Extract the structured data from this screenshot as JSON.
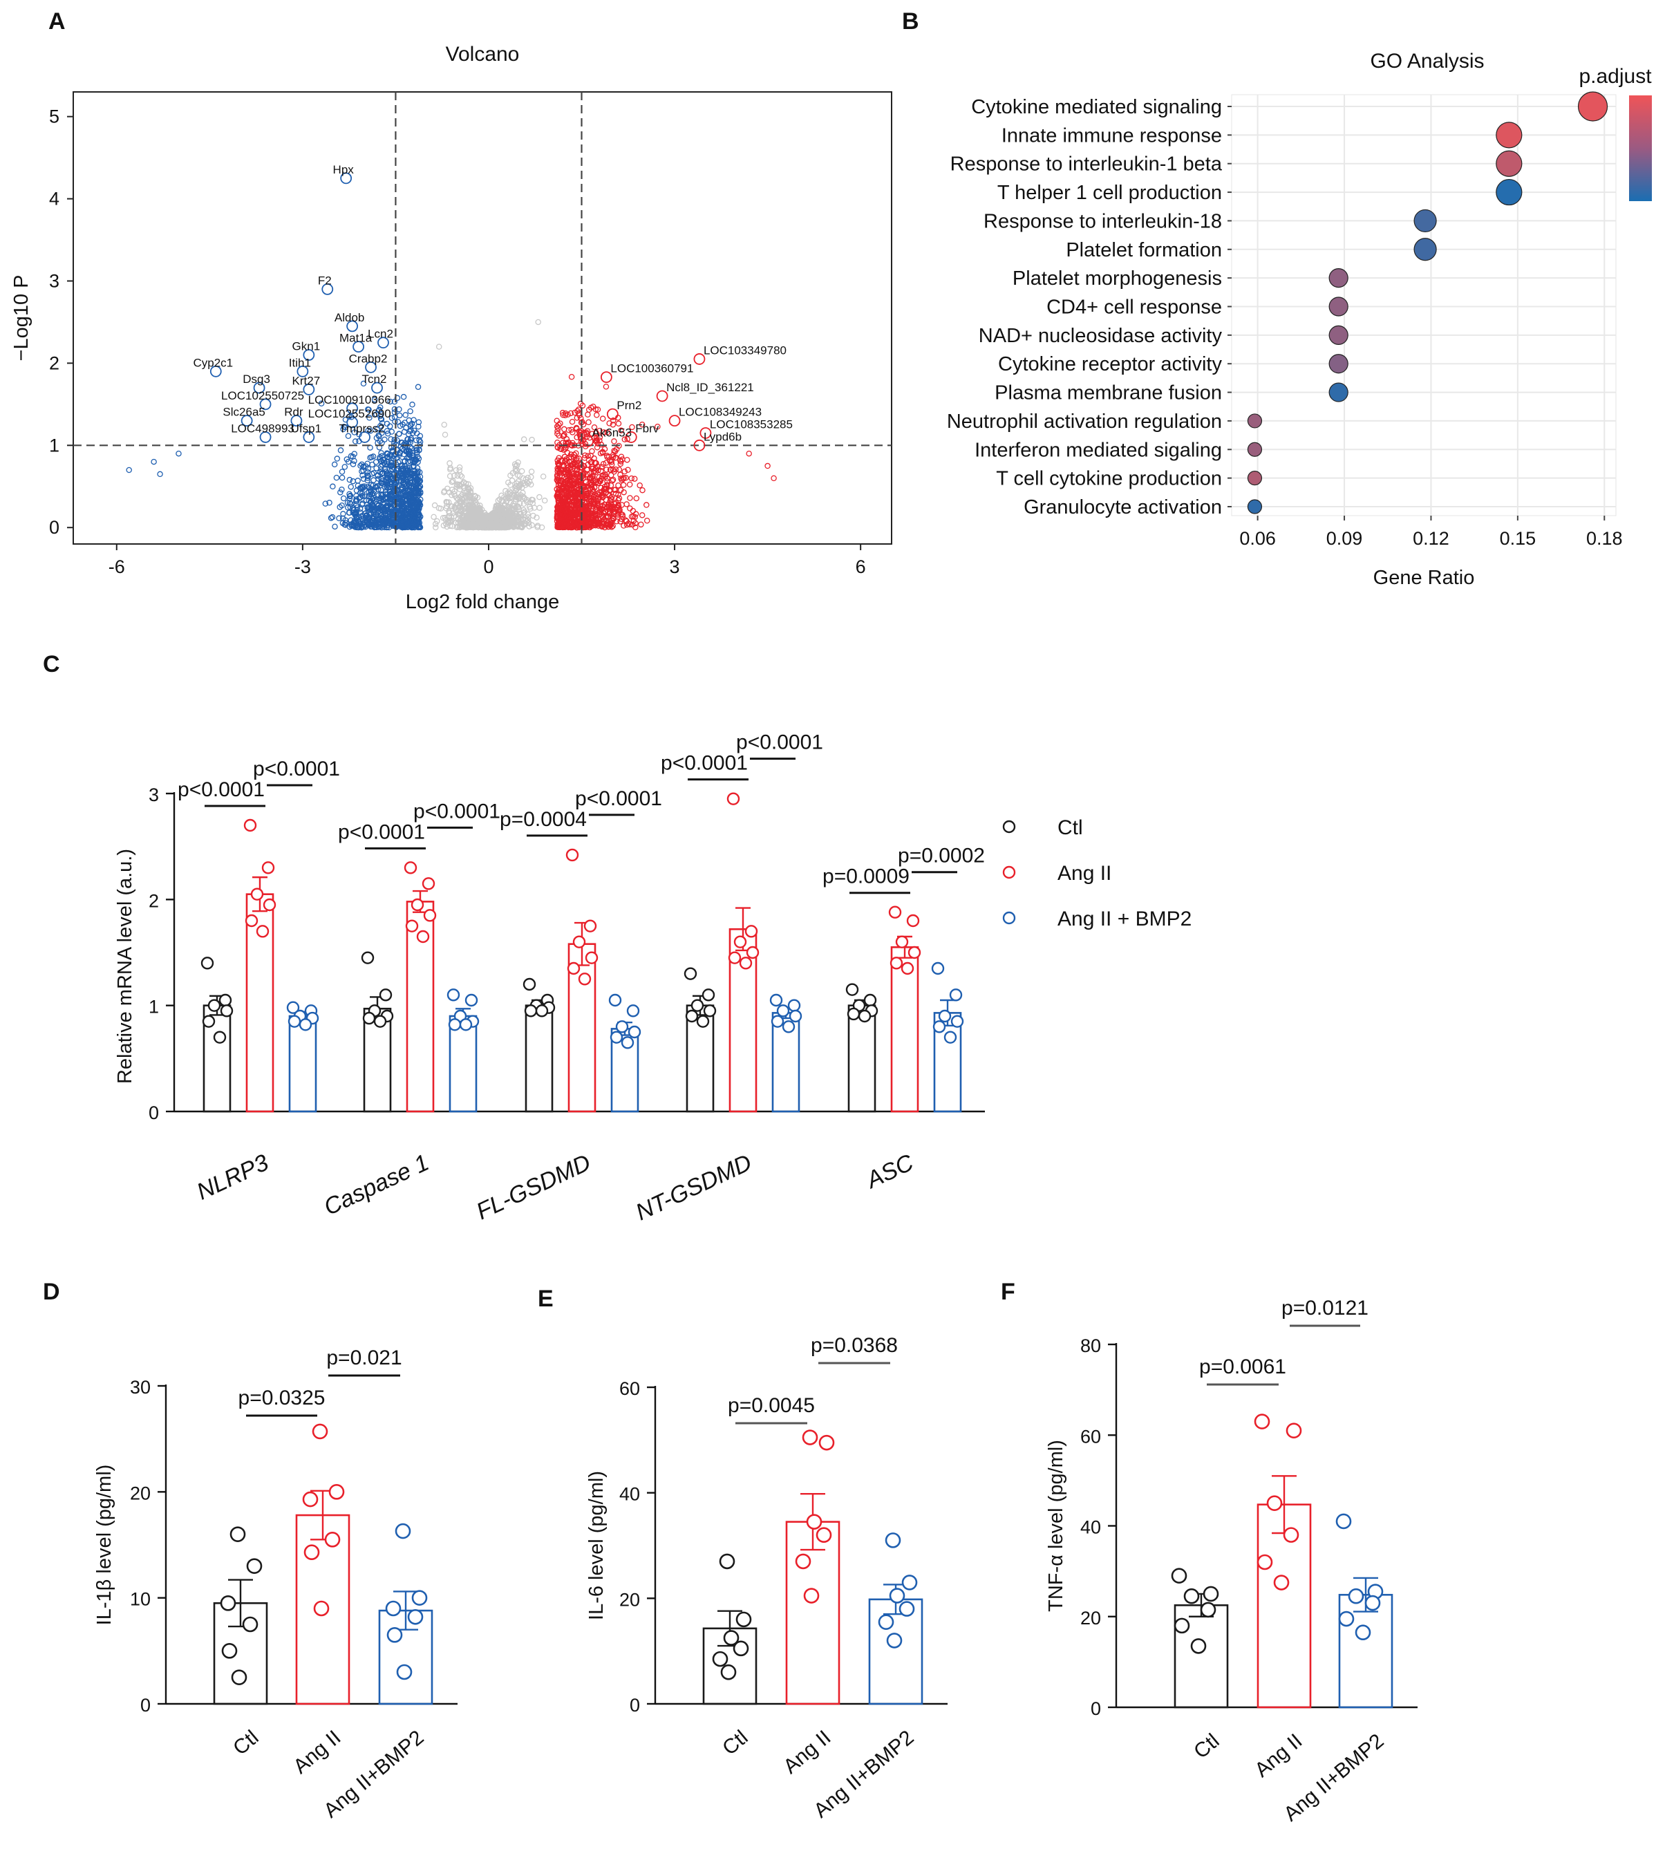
{
  "panel_letters": {
    "A": "A",
    "B": "B",
    "C": "C",
    "D": "D",
    "E": "E",
    "F": "F"
  },
  "colors": {
    "ctl": "#1a1a1a",
    "ang": "#e8202a",
    "bmp": "#1f5fb0",
    "grey": "#c8c8c8"
  },
  "chart_data": [
    {
      "id": "A",
      "type": "scatter",
      "title": "Volcano",
      "xlabel": "Log2 fold change",
      "ylabel": "−Log10 P",
      "xlim": [
        -6.7,
        6.5
      ],
      "ylim": [
        -0.2,
        5.3
      ],
      "xticks": [
        -6,
        -3,
        0,
        3,
        6
      ],
      "yticks": [
        0,
        1,
        2,
        3,
        4,
        5
      ],
      "fc_thresholds": [
        -1.5,
        1.5
      ],
      "p_threshold": 1,
      "labeled_points": [
        {
          "gene": "Hpx",
          "x": -2.3,
          "y": 4.25,
          "dir": "down"
        },
        {
          "gene": "F2",
          "x": -2.6,
          "y": 2.9,
          "dir": "down"
        },
        {
          "gene": "Aldob",
          "x": -2.2,
          "y": 2.45,
          "dir": "down"
        },
        {
          "gene": "Lcn2",
          "x": -1.7,
          "y": 2.25,
          "dir": "down"
        },
        {
          "gene": "Mat1a",
          "x": -2.1,
          "y": 2.2,
          "dir": "down"
        },
        {
          "gene": "Gkn1",
          "x": -2.9,
          "y": 2.1,
          "dir": "down"
        },
        {
          "gene": "Crabp2",
          "x": -1.9,
          "y": 1.95,
          "dir": "down"
        },
        {
          "gene": "Itih1",
          "x": -3.0,
          "y": 1.9,
          "dir": "down"
        },
        {
          "gene": "Cyp2c1",
          "x": -4.4,
          "y": 1.9,
          "dir": "down"
        },
        {
          "gene": "Tcn2",
          "x": -1.8,
          "y": 1.7,
          "dir": "down"
        },
        {
          "gene": "Dsg3",
          "x": -3.7,
          "y": 1.7,
          "dir": "down"
        },
        {
          "gene": "Krt27",
          "x": -2.9,
          "y": 1.68,
          "dir": "down"
        },
        {
          "gene": "LOC102550725",
          "x": -3.6,
          "y": 1.5,
          "dir": "down"
        },
        {
          "gene": "LOC100910366",
          "x": -2.2,
          "y": 1.45,
          "dir": "down"
        },
        {
          "gene": "Slc26a5",
          "x": -3.9,
          "y": 1.3,
          "dir": "down"
        },
        {
          "gene": "Rdr",
          "x": -3.1,
          "y": 1.3,
          "dir": "down"
        },
        {
          "gene": "LOC102552690",
          "x": -2.2,
          "y": 1.28,
          "dir": "down"
        },
        {
          "gene": "LOC498993",
          "x": -3.6,
          "y": 1.1,
          "dir": "down"
        },
        {
          "gene": "Ufsp1",
          "x": -2.9,
          "y": 1.1,
          "dir": "down"
        },
        {
          "gene": "Tmprss2",
          "x": -2.0,
          "y": 1.1,
          "dir": "down"
        },
        {
          "gene": "LOC103349780",
          "x": 3.4,
          "y": 2.05,
          "dir": "up"
        },
        {
          "gene": "LOC100360791",
          "x": 1.9,
          "y": 1.83,
          "dir": "up"
        },
        {
          "gene": "Ncl8_ID_361221",
          "x": 2.8,
          "y": 1.6,
          "dir": "up"
        },
        {
          "gene": "Prn2",
          "x": 2.0,
          "y": 1.38,
          "dir": "up"
        },
        {
          "gene": "LOC108349243",
          "x": 3.0,
          "y": 1.3,
          "dir": "up"
        },
        {
          "gene": "LOC108353285",
          "x": 3.5,
          "y": 1.15,
          "dir": "up"
        },
        {
          "gene": "Fbrv",
          "x": 2.3,
          "y": 1.1,
          "dir": "up"
        },
        {
          "gene": "Ak6n53",
          "x": 1.6,
          "y": 1.05,
          "dir": "up"
        },
        {
          "gene": "Lypd6b",
          "x": 3.4,
          "y": 1.0,
          "dir": "up"
        }
      ]
    },
    {
      "id": "B",
      "type": "scatter",
      "title": "GO Analysis",
      "xlabel": "Gene Ratio",
      "legend_title": "p.adjust",
      "xlim": [
        0.051,
        0.184
      ],
      "xticks": [
        "0.06",
        "0.09",
        "0.12",
        "0.15",
        "0.18"
      ],
      "terms": [
        {
          "term": "Cytokine mediated signaling",
          "ratio": 0.176,
          "padj": 0.95,
          "size": 3
        },
        {
          "term": "Innate immune response",
          "ratio": 0.147,
          "padj": 0.92,
          "size": 2.5
        },
        {
          "term": "Response to interleukin-1 beta",
          "ratio": 0.147,
          "padj": 0.78,
          "size": 2.5
        },
        {
          "term": "T helper 1 cell production",
          "ratio": 0.147,
          "padj": 0.05,
          "size": 2.5
        },
        {
          "term": "Response to interleukin-18",
          "ratio": 0.118,
          "padj": 0.2,
          "size": 2
        },
        {
          "term": "Platelet formation",
          "ratio": 0.118,
          "padj": 0.18,
          "size": 2
        },
        {
          "term": "Platelet morphogenesis",
          "ratio": 0.088,
          "padj": 0.55,
          "size": 1.5
        },
        {
          "term": "CD4+ cell response",
          "ratio": 0.088,
          "padj": 0.55,
          "size": 1.5
        },
        {
          "term": "NAD+ nucleosidase activity",
          "ratio": 0.088,
          "padj": 0.55,
          "size": 1.5
        },
        {
          "term": "Cytokine receptor activity",
          "ratio": 0.088,
          "padj": 0.5,
          "size": 1.5
        },
        {
          "term": "Plasma membrane fusion",
          "ratio": 0.088,
          "padj": 0.1,
          "size": 1.5
        },
        {
          "term": "Neutrophil activation regulation",
          "ratio": 0.059,
          "padj": 0.6,
          "size": 0.8
        },
        {
          "term": "Interferon mediated sigaling",
          "ratio": 0.059,
          "padj": 0.6,
          "size": 0.8
        },
        {
          "term": "T cell cytokine production",
          "ratio": 0.059,
          "padj": 0.7,
          "size": 0.8
        },
        {
          "term": "Granulocyte activation",
          "ratio": 0.059,
          "padj": 0.1,
          "size": 0.8
        }
      ]
    },
    {
      "id": "C",
      "type": "bar",
      "ylabel": "Relative mRNA level (a.u.)",
      "ylim": [
        0,
        3
      ],
      "yticks": [
        0,
        1,
        2,
        3
      ],
      "categories": [
        "NLRP3",
        "Caspase 1",
        "FL-GSDMD",
        "NT-GSDMD",
        "ASC"
      ],
      "series": [
        {
          "name": "Ctl",
          "means": [
            1.0,
            0.97,
            1.0,
            1.0,
            1.0
          ],
          "sems": [
            0.09,
            0.11,
            0.05,
            0.09,
            0.05
          ],
          "points": [
            [
              1.4,
              1.05,
              1.0,
              0.95,
              0.85,
              0.7
            ],
            [
              1.45,
              1.1,
              0.95,
              0.9,
              0.88,
              0.85
            ],
            [
              1.2,
              1.05,
              1.0,
              0.98,
              0.95,
              0.95
            ],
            [
              1.3,
              1.1,
              1.0,
              0.95,
              0.9,
              0.85
            ],
            [
              1.15,
              1.05,
              1.0,
              0.95,
              0.92,
              0.9
            ]
          ]
        },
        {
          "name": "Ang II",
          "means": [
            2.05,
            1.98,
            1.58,
            1.72,
            1.55
          ],
          "sems": [
            0.16,
            0.1,
            0.2,
            0.2,
            0.1
          ],
          "points": [
            [
              2.7,
              2.3,
              2.05,
              1.95,
              1.8,
              1.7
            ],
            [
              2.3,
              2.15,
              1.95,
              1.85,
              1.75,
              1.65
            ],
            [
              2.42,
              1.75,
              1.6,
              1.45,
              1.35,
              1.25
            ],
            [
              2.95,
              1.7,
              1.6,
              1.5,
              1.45,
              1.4
            ],
            [
              1.88,
              1.8,
              1.6,
              1.5,
              1.4,
              1.35
            ]
          ]
        },
        {
          "name": "Ang II + BMP2",
          "means": [
            0.9,
            0.9,
            0.78,
            0.93,
            0.93
          ],
          "sems": [
            0.04,
            0.07,
            0.06,
            0.05,
            0.12
          ],
          "points": [
            [
              0.98,
              0.95,
              0.9,
              0.88,
              0.85,
              0.82
            ],
            [
              1.1,
              1.05,
              0.9,
              0.85,
              0.82,
              0.82
            ],
            [
              1.05,
              0.95,
              0.8,
              0.75,
              0.7,
              0.65
            ],
            [
              1.05,
              1.0,
              0.95,
              0.9,
              0.85,
              0.8
            ],
            [
              1.35,
              1.1,
              0.9,
              0.85,
              0.8,
              0.7
            ]
          ]
        }
      ],
      "comparisons": [
        {
          "label": "p<0.0001",
          "cat": 0,
          "pair": "a"
        },
        {
          "label": "p<0.0001",
          "cat": 0,
          "pair": "b"
        },
        {
          "label": "p<0.0001",
          "cat": 1,
          "pair": "a"
        },
        {
          "label": "p<0.0001",
          "cat": 1,
          "pair": "b"
        },
        {
          "label": "p=0.0004",
          "cat": 2,
          "pair": "a"
        },
        {
          "label": "p<0.0001",
          "cat": 2,
          "pair": "b"
        },
        {
          "label": "p<0.0001",
          "cat": 3,
          "pair": "a"
        },
        {
          "label": "p<0.0001",
          "cat": 3,
          "pair": "b"
        },
        {
          "label": "p=0.0009",
          "cat": 4,
          "pair": "a"
        },
        {
          "label": "p=0.0002",
          "cat": 4,
          "pair": "b"
        }
      ],
      "legend": [
        "Ctl",
        "Ang II",
        "Ang II + BMP2"
      ]
    },
    {
      "id": "D",
      "type": "bar",
      "ylabel": "IL-1β level (pg/ml)",
      "ylim": [
        0,
        30
      ],
      "yticks": [
        0,
        10,
        20,
        30
      ],
      "categories": [
        "Ctl",
        "Ang II",
        "Ang II+BMP2"
      ],
      "means": [
        9.5,
        17.8,
        8.8
      ],
      "sems": [
        2.2,
        2.3,
        1.8
      ],
      "points": [
        [
          16,
          13,
          9.5,
          7.5,
          5,
          2.5
        ],
        [
          25.7,
          20,
          19.3,
          15.5,
          14.3,
          9
        ],
        [
          16.3,
          10,
          9,
          8.2,
          6.5,
          3
        ]
      ],
      "comparisons": [
        {
          "label": "p=0.0325",
          "from": 0,
          "to": 1
        },
        {
          "label": "p=0.021",
          "from": 1,
          "to": 2
        }
      ]
    },
    {
      "id": "E",
      "type": "bar",
      "ylabel": "IL-6 level (pg/ml)",
      "ylim": [
        0,
        60
      ],
      "yticks": [
        0,
        20,
        40,
        60
      ],
      "categories": [
        "Ctl",
        "Ang II",
        "Ang II+BMP2"
      ],
      "means": [
        14.3,
        34.5,
        19.8
      ],
      "sems": [
        3.3,
        5.3,
        2.8
      ],
      "points": [
        [
          27,
          16,
          12.5,
          10.5,
          8.5,
          6
        ],
        [
          50.5,
          49.5,
          34.5,
          32,
          27,
          20.5
        ],
        [
          31,
          23,
          20.5,
          18,
          15.5,
          12
        ]
      ],
      "comparisons": [
        {
          "label": "p=0.0045",
          "from": 0,
          "to": 1
        },
        {
          "label": "p=0.0368",
          "from": 1,
          "to": 2
        }
      ]
    },
    {
      "id": "F",
      "type": "bar",
      "ylabel": "TNF-α level (pg/ml)",
      "ylim": [
        0,
        80
      ],
      "yticks": [
        0,
        20,
        40,
        60,
        80
      ],
      "categories": [
        "Ctl",
        "Ang II",
        "Ang II+BMP2"
      ],
      "means": [
        22.5,
        44.7,
        24.8
      ],
      "sems": [
        2.5,
        6.3,
        3.7
      ],
      "points": [
        [
          29,
          25,
          24.5,
          21.5,
          18,
          13.5
        ],
        [
          63,
          61,
          45,
          38,
          32,
          27.5
        ],
        [
          41,
          25.5,
          24.5,
          23,
          19.5,
          16.5
        ]
      ],
      "comparisons": [
        {
          "label": "p=0.0061",
          "from": 0,
          "to": 1
        },
        {
          "label": "p=0.0121",
          "from": 1,
          "to": 2
        }
      ]
    }
  ]
}
